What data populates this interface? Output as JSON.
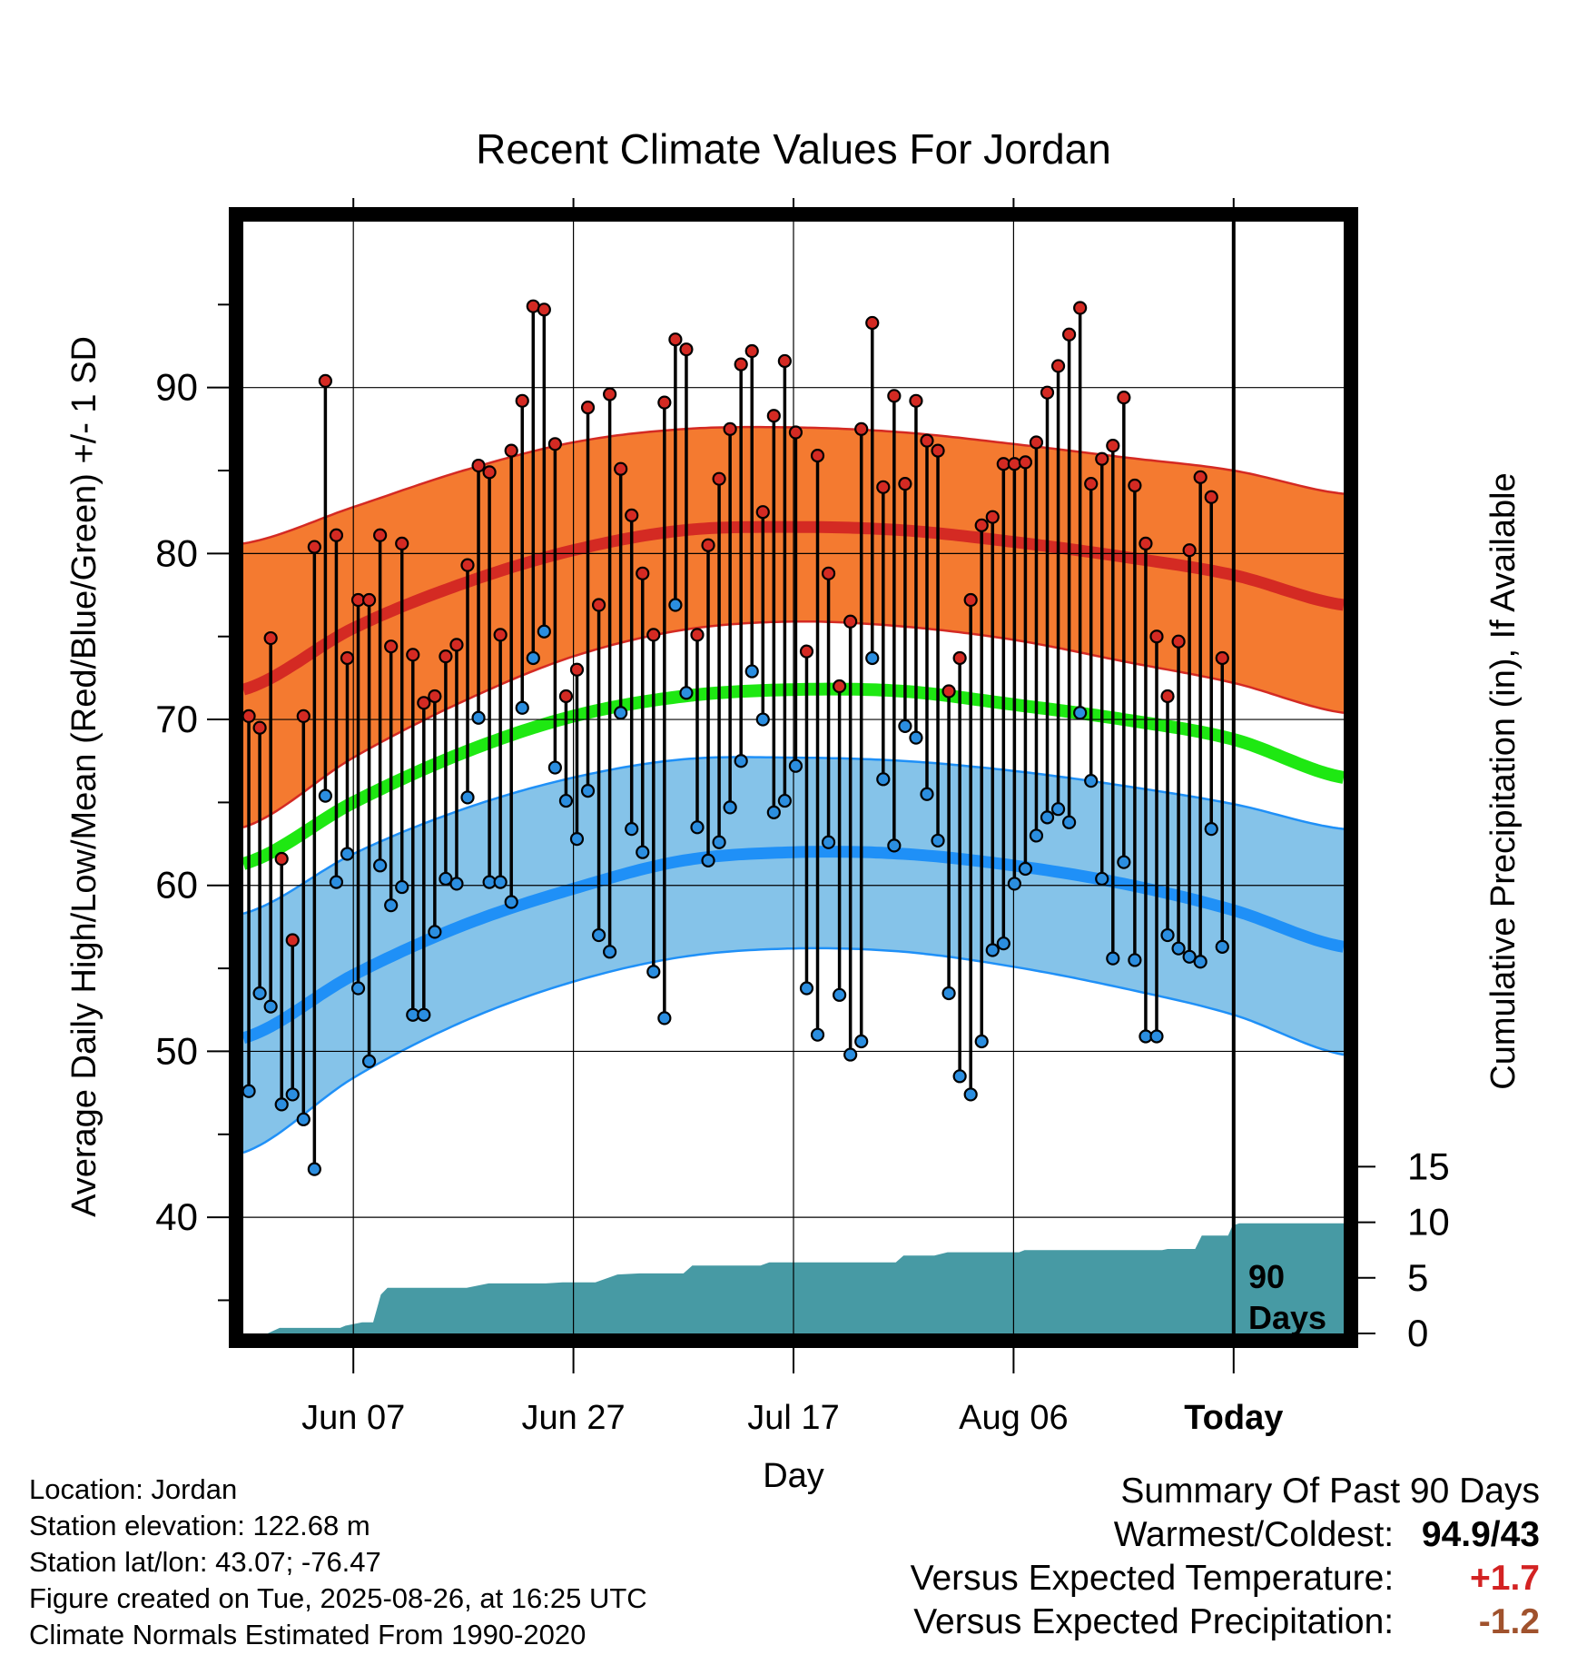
{
  "chart_data": {
    "type": "line",
    "title": "Recent Climate Values For Jordan",
    "xlabel": "Day",
    "ylabel_left": "Average Daily High/Low/Mean (Red/Blue/Green) +/- 1 SD",
    "ylabel_right": "Cumulative Precipitation (in), If Available",
    "x_ticks": [
      "Jun 07",
      "Jun 27",
      "Jul 17",
      "Aug 06",
      "Today"
    ],
    "x_tick_days": [
      10,
      30,
      50,
      70,
      90
    ],
    "x_range": [
      0,
      100
    ],
    "y_left_range": [
      33,
      100
    ],
    "y_left_ticks": [
      40,
      50,
      60,
      70,
      80,
      90
    ],
    "y_right_range": [
      0,
      100
    ],
    "y_right_ticks": [
      0,
      5,
      10,
      15
    ],
    "today_day": 90,
    "today_label": [
      "90",
      "Days"
    ],
    "grid": true,
    "normals": {
      "day": [
        0,
        10,
        20,
        30,
        40,
        50,
        60,
        70,
        80,
        90,
        100
      ],
      "high_mean": [
        71.8,
        75.5,
        78.2,
        80.2,
        81.4,
        81.6,
        81.4,
        80.7,
        79.8,
        78.7,
        76.9
      ],
      "high_upper": [
        80.6,
        82.8,
        85.0,
        86.7,
        87.5,
        87.6,
        87.3,
        86.6,
        85.8,
        85.0,
        83.6
      ],
      "high_lower": [
        63.5,
        67.7,
        71.1,
        73.8,
        75.4,
        75.9,
        75.6,
        74.8,
        73.5,
        72.2,
        70.4
      ],
      "low_mean": [
        50.8,
        54.6,
        57.6,
        59.8,
        61.5,
        62.0,
        61.9,
        61.2,
        60.1,
        58.5,
        56.3
      ],
      "low_upper": [
        58.3,
        61.9,
        64.6,
        66.5,
        67.6,
        67.7,
        67.5,
        66.9,
        66.0,
        64.9,
        63.4
      ],
      "low_lower": [
        43.9,
        48.4,
        51.8,
        54.2,
        55.7,
        56.2,
        56.0,
        55.1,
        53.8,
        52.2,
        49.8
      ],
      "mean": [
        61.3,
        65.0,
        68.0,
        70.2,
        71.4,
        71.8,
        71.7,
        70.9,
        70.0,
        68.8,
        66.5
      ]
    },
    "daily_highs": [
      70.2,
      69.5,
      74.9,
      61.6,
      56.7,
      70.2,
      80.4,
      90.4,
      81.1,
      73.7,
      77.2,
      77.2,
      81.1,
      74.4,
      80.6,
      73.9,
      71.0,
      71.4,
      73.8,
      74.5,
      79.3,
      85.3,
      84.9,
      75.1,
      86.2,
      89.2,
      94.9,
      94.7,
      86.6,
      71.4,
      73.0,
      88.8,
      76.9,
      89.6,
      85.1,
      82.3,
      78.8,
      75.1,
      89.1,
      92.9,
      92.3,
      75.1,
      80.5,
      84.5,
      87.5,
      91.4,
      92.2,
      82.5,
      88.3,
      91.6,
      87.3,
      74.1,
      85.9,
      78.8,
      72.0,
      75.9,
      87.5,
      93.9,
      84.0,
      89.5,
      84.2,
      89.2,
      86.8,
      86.2,
      71.7,
      73.7,
      77.2,
      81.7,
      82.2,
      85.4,
      85.4,
      85.5,
      86.7,
      89.7,
      91.3,
      93.2,
      94.8,
      84.2,
      85.7,
      86.5,
      89.4,
      84.1,
      80.6,
      75.0,
      71.4,
      74.7,
      80.2,
      84.6,
      83.4,
      73.7
    ],
    "daily_lows": [
      47.6,
      53.5,
      52.7,
      46.8,
      47.4,
      45.9,
      42.9,
      65.4,
      60.2,
      61.9,
      53.8,
      49.4,
      61.2,
      58.8,
      59.9,
      52.2,
      52.2,
      57.2,
      60.4,
      60.1,
      65.3,
      70.1,
      60.2,
      60.2,
      59.0,
      70.7,
      73.7,
      75.3,
      67.1,
      65.1,
      62.8,
      65.7,
      57.0,
      56.0,
      70.4,
      63.4,
      62.0,
      54.8,
      52.0,
      76.9,
      71.6,
      63.5,
      61.5,
      62.6,
      64.7,
      67.5,
      72.9,
      70.0,
      64.4,
      65.1,
      67.2,
      53.8,
      51.0,
      62.6,
      53.4,
      49.8,
      50.6,
      73.7,
      66.4,
      62.4,
      69.6,
      68.9,
      65.5,
      62.7,
      53.5,
      48.5,
      47.4,
      50.6,
      56.1,
      56.5,
      60.1,
      61.0,
      63.0,
      64.1,
      64.6,
      63.8,
      70.4,
      66.3,
      60.4,
      55.6,
      61.4,
      55.5,
      50.9,
      50.9,
      57.0,
      56.2,
      55.7,
      55.4,
      63.4,
      56.3
    ],
    "precip_curve": [
      [
        0,
        0.0
      ],
      [
        2.2,
        0.0
      ],
      [
        3.3,
        0.5
      ],
      [
        8.8,
        0.5
      ],
      [
        9.3,
        0.7
      ],
      [
        10.8,
        1.0
      ],
      [
        11.8,
        1.0
      ],
      [
        12.5,
        3.5
      ],
      [
        13.1,
        4.1
      ],
      [
        20.3,
        4.1
      ],
      [
        22.3,
        4.5
      ],
      [
        27.5,
        4.5
      ],
      [
        29.0,
        4.6
      ],
      [
        32.0,
        4.6
      ],
      [
        34.0,
        5.3
      ],
      [
        36.0,
        5.4
      ],
      [
        40.0,
        5.4
      ],
      [
        40.8,
        6.1
      ],
      [
        47.0,
        6.1
      ],
      [
        47.8,
        6.4
      ],
      [
        59.3,
        6.4
      ],
      [
        60.0,
        7.0
      ],
      [
        62.8,
        7.0
      ],
      [
        64.0,
        7.3
      ],
      [
        70.5,
        7.3
      ],
      [
        71.0,
        7.5
      ],
      [
        83.5,
        7.5
      ],
      [
        84.0,
        7.6
      ],
      [
        86.5,
        7.6
      ],
      [
        87.1,
        8.8
      ],
      [
        89.5,
        8.8
      ],
      [
        89.9,
        9.7
      ],
      [
        90.5,
        9.9
      ],
      [
        100,
        9.9
      ]
    ]
  },
  "footer": {
    "location": "Location: Jordan",
    "elevation": "Station elevation: 122.68 m",
    "latlon": "Station lat/lon: 43.07; -76.47",
    "created": "Figure created on Tue, 2025-08-26, at 16:25 UTC",
    "normals_note": "Climate Normals Estimated From 1990-2020"
  },
  "summary": {
    "heading": "Summary Of Past 90 Days",
    "warmest_label": "Warmest/Coldest:",
    "warmest_value": "94.9/43",
    "temp_label": "Versus Expected Temperature:",
    "temp_value": "+1.7",
    "precip_label": "Versus Expected Precipitation:",
    "precip_value": "-1.2"
  },
  "colors": {
    "high_band": "#f47a30",
    "high_line": "#d42a23",
    "low_band": "#85c3e9",
    "low_line": "#1f90f7",
    "mean_line": "#1ee812",
    "precip_fill": "#479aa4",
    "high_dot": "#d42a23",
    "low_dot": "#2b8ee0"
  }
}
